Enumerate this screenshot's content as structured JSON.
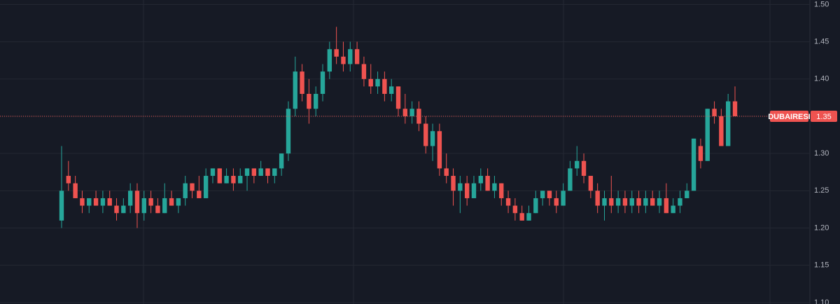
{
  "chart_data": {
    "type": "candlestick",
    "symbol": "DUBAIRESI",
    "last_price": 1.35,
    "up_color": "#26a69a",
    "down_color": "#ef5350",
    "ylim": [
      1.098,
      1.506
    ],
    "yticks": [
      {
        "value": 1.5,
        "label": "1.50"
      },
      1.45,
      {
        "value": 1.4,
        "label": "1.40"
      },
      1.35,
      {
        "value": 1.3,
        "label": "1.30"
      },
      1.25,
      {
        "value": 1.2,
        "label": "1.20"
      },
      1.15,
      {
        "value": 1.1,
        "label": "1.10"
      }
    ],
    "grid": true,
    "open": [
      1.21,
      1.27,
      1.26,
      1.24,
      1.23,
      1.24,
      1.23,
      1.24,
      1.23,
      1.22,
      1.23,
      1.25,
      1.22,
      1.24,
      1.23,
      1.22,
      1.24,
      1.23,
      1.24,
      1.26,
      1.25,
      1.24,
      1.27,
      1.28,
      1.26,
      1.27,
      1.26,
      1.27,
      1.28,
      1.27,
      1.28,
      1.27,
      1.28,
      1.3,
      1.36,
      1.41,
      1.38,
      1.36,
      1.38,
      1.41,
      1.44,
      1.43,
      1.42,
      1.44,
      1.42,
      1.4,
      1.39,
      1.4,
      1.38,
      1.39,
      1.36,
      1.35,
      1.36,
      1.34,
      1.31,
      1.33,
      1.28,
      1.27,
      1.25,
      1.26,
      1.24,
      1.26,
      1.27,
      1.25,
      1.26,
      1.24,
      1.23,
      1.22,
      1.21,
      1.22,
      1.24,
      1.25,
      1.24,
      1.23,
      1.25,
      1.28,
      1.29,
      1.27,
      1.25,
      1.23,
      1.24,
      1.23,
      1.24,
      1.23,
      1.24,
      1.23,
      1.24,
      1.23,
      1.24,
      1.22,
      1.23,
      1.24,
      1.25,
      1.31,
      1.29,
      1.36,
      1.35,
      1.31,
      1.37
    ],
    "high": [
      1.31,
      1.29,
      1.27,
      1.25,
      1.24,
      1.25,
      1.25,
      1.25,
      1.24,
      1.24,
      1.26,
      1.26,
      1.25,
      1.25,
      1.24,
      1.26,
      1.25,
      1.24,
      1.27,
      1.26,
      1.27,
      1.28,
      1.28,
      1.28,
      1.28,
      1.28,
      1.28,
      1.28,
      1.28,
      1.29,
      1.28,
      1.28,
      1.3,
      1.37,
      1.43,
      1.42,
      1.4,
      1.39,
      1.42,
      1.45,
      1.47,
      1.45,
      1.45,
      1.45,
      1.43,
      1.42,
      1.41,
      1.41,
      1.4,
      1.39,
      1.38,
      1.37,
      1.37,
      1.35,
      1.34,
      1.34,
      1.3,
      1.28,
      1.27,
      1.27,
      1.27,
      1.28,
      1.28,
      1.27,
      1.26,
      1.25,
      1.24,
      1.23,
      1.23,
      1.25,
      1.25,
      1.25,
      1.25,
      1.26,
      1.29,
      1.31,
      1.3,
      1.27,
      1.26,
      1.25,
      1.27,
      1.25,
      1.25,
      1.25,
      1.25,
      1.25,
      1.25,
      1.25,
      1.26,
      1.24,
      1.25,
      1.26,
      1.32,
      1.32,
      1.36,
      1.37,
      1.36,
      1.38,
      1.39
    ],
    "low": [
      1.2,
      1.25,
      1.24,
      1.22,
      1.22,
      1.23,
      1.22,
      1.23,
      1.21,
      1.22,
      1.22,
      1.2,
      1.21,
      1.22,
      1.22,
      1.22,
      1.23,
      1.22,
      1.23,
      1.24,
      1.24,
      1.24,
      1.26,
      1.26,
      1.26,
      1.25,
      1.26,
      1.25,
      1.26,
      1.27,
      1.26,
      1.26,
      1.27,
      1.29,
      1.35,
      1.37,
      1.34,
      1.35,
      1.37,
      1.4,
      1.42,
      1.41,
      1.41,
      1.42,
      1.39,
      1.38,
      1.38,
      1.37,
      1.37,
      1.35,
      1.34,
      1.34,
      1.33,
      1.3,
      1.29,
      1.27,
      1.26,
      1.23,
      1.22,
      1.23,
      1.24,
      1.25,
      1.25,
      1.24,
      1.23,
      1.22,
      1.21,
      1.21,
      1.21,
      1.22,
      1.23,
      1.23,
      1.22,
      1.23,
      1.25,
      1.27,
      1.26,
      1.24,
      1.22,
      1.21,
      1.22,
      1.22,
      1.22,
      1.22,
      1.22,
      1.22,
      1.23,
      1.22,
      1.22,
      1.22,
      1.22,
      1.24,
      1.25,
      1.28,
      1.29,
      1.34,
      1.31,
      1.31,
      1.35
    ],
    "close": [
      1.25,
      1.26,
      1.24,
      1.23,
      1.24,
      1.23,
      1.24,
      1.23,
      1.22,
      1.23,
      1.25,
      1.22,
      1.24,
      1.23,
      1.22,
      1.24,
      1.23,
      1.24,
      1.26,
      1.25,
      1.24,
      1.27,
      1.28,
      1.26,
      1.27,
      1.26,
      1.27,
      1.28,
      1.27,
      1.28,
      1.27,
      1.28,
      1.3,
      1.36,
      1.41,
      1.38,
      1.36,
      1.38,
      1.41,
      1.44,
      1.43,
      1.42,
      1.44,
      1.42,
      1.4,
      1.39,
      1.4,
      1.38,
      1.39,
      1.36,
      1.35,
      1.36,
      1.34,
      1.31,
      1.33,
      1.28,
      1.27,
      1.25,
      1.26,
      1.24,
      1.26,
      1.27,
      1.25,
      1.26,
      1.24,
      1.23,
      1.22,
      1.21,
      1.22,
      1.24,
      1.25,
      1.24,
      1.23,
      1.25,
      1.28,
      1.29,
      1.27,
      1.25,
      1.23,
      1.24,
      1.23,
      1.24,
      1.23,
      1.24,
      1.23,
      1.24,
      1.23,
      1.24,
      1.22,
      1.23,
      1.24,
      1.25,
      1.32,
      1.29,
      1.36,
      1.35,
      1.31,
      1.37,
      1.35
    ]
  }
}
